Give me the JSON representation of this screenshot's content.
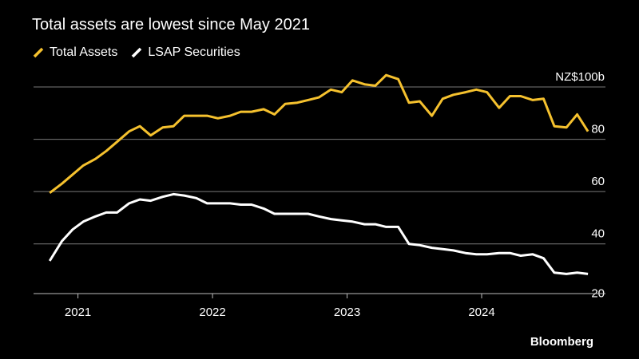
{
  "title": "Total assets are lowest since May 2021",
  "legend": [
    {
      "label": "Total Assets",
      "color": "#f5c12e"
    },
    {
      "label": "LSAP Securities",
      "color": "#ffffff"
    }
  ],
  "source": "Bloomberg",
  "chart_data": {
    "type": "line",
    "title": "Total assets are lowest since May 2021",
    "xlabel": "",
    "ylabel": "NZ$100b",
    "y_unit_label": "NZ$100b",
    "ylim": [
      20,
      100
    ],
    "yticks": [
      {
        "value": 100,
        "label": "NZ$100b"
      },
      {
        "value": 80,
        "label": "80"
      },
      {
        "value": 60,
        "label": "60"
      },
      {
        "value": 40,
        "label": "40"
      },
      {
        "value": 20,
        "label": "20"
      }
    ],
    "xlim": [
      2020.67,
      2024.92
    ],
    "xticks": [
      {
        "value": 2021.0,
        "label": "2021"
      },
      {
        "value": 2022.0,
        "label": "2022"
      },
      {
        "value": 2023.0,
        "label": "2023"
      },
      {
        "value": 2024.0,
        "label": "2024"
      }
    ],
    "grid": "horizontal",
    "legend_position": "top-left",
    "series": [
      {
        "name": "Total Assets",
        "color": "#f5c12e",
        "points": [
          [
            2020.79,
            59.5
          ],
          [
            2020.88,
            63
          ],
          [
            2020.96,
            66.5
          ],
          [
            2021.04,
            70
          ],
          [
            2021.13,
            72.5
          ],
          [
            2021.21,
            75.5
          ],
          [
            2021.29,
            79
          ],
          [
            2021.38,
            83
          ],
          [
            2021.46,
            85
          ],
          [
            2021.54,
            81.5
          ],
          [
            2021.63,
            84.5
          ],
          [
            2021.71,
            85
          ],
          [
            2021.79,
            89
          ],
          [
            2021.88,
            89
          ],
          [
            2021.96,
            89
          ],
          [
            2022.04,
            88
          ],
          [
            2022.13,
            89
          ],
          [
            2022.21,
            90.5
          ],
          [
            2022.29,
            90.5
          ],
          [
            2022.38,
            91.5
          ],
          [
            2022.46,
            89.5
          ],
          [
            2022.54,
            93.5
          ],
          [
            2022.63,
            94
          ],
          [
            2022.71,
            95
          ],
          [
            2022.79,
            96
          ],
          [
            2022.88,
            99
          ],
          [
            2022.96,
            98
          ],
          [
            2023.04,
            102.5
          ],
          [
            2023.13,
            101
          ],
          [
            2023.21,
            100.5
          ],
          [
            2023.29,
            104.5
          ],
          [
            2023.38,
            103
          ],
          [
            2023.46,
            94
          ],
          [
            2023.54,
            94.5
          ],
          [
            2023.63,
            89
          ],
          [
            2023.71,
            95.5
          ],
          [
            2023.79,
            97
          ],
          [
            2023.88,
            98
          ],
          [
            2023.96,
            99
          ],
          [
            2024.04,
            98
          ],
          [
            2024.13,
            92
          ],
          [
            2024.21,
            96.5
          ],
          [
            2024.29,
            96.5
          ],
          [
            2024.38,
            95
          ],
          [
            2024.46,
            95.5
          ],
          [
            2024.54,
            85
          ],
          [
            2024.63,
            84.5
          ],
          [
            2024.71,
            89.5
          ],
          [
            2024.79,
            83
          ]
        ]
      },
      {
        "name": "LSAP Securities",
        "color": "#ffffff",
        "points": [
          [
            2020.79,
            33.5
          ],
          [
            2020.88,
            41
          ],
          [
            2020.96,
            45.5
          ],
          [
            2021.04,
            48.5
          ],
          [
            2021.13,
            50.5
          ],
          [
            2021.21,
            52
          ],
          [
            2021.29,
            52
          ],
          [
            2021.38,
            55.5
          ],
          [
            2021.46,
            57
          ],
          [
            2021.54,
            56.5
          ],
          [
            2021.63,
            58
          ],
          [
            2021.71,
            59
          ],
          [
            2021.79,
            58.5
          ],
          [
            2021.88,
            57.5
          ],
          [
            2021.96,
            55.5
          ],
          [
            2022.04,
            55.5
          ],
          [
            2022.13,
            55.5
          ],
          [
            2022.21,
            55
          ],
          [
            2022.29,
            55
          ],
          [
            2022.38,
            53.5
          ],
          [
            2022.46,
            51.5
          ],
          [
            2022.54,
            51.5
          ],
          [
            2022.63,
            51.5
          ],
          [
            2022.71,
            51.5
          ],
          [
            2022.79,
            50.5
          ],
          [
            2022.88,
            49.5
          ],
          [
            2022.96,
            49
          ],
          [
            2023.04,
            48.5
          ],
          [
            2023.13,
            47.5
          ],
          [
            2023.21,
            47.5
          ],
          [
            2023.29,
            46.5
          ],
          [
            2023.38,
            46.5
          ],
          [
            2023.46,
            40
          ],
          [
            2023.54,
            39.5
          ],
          [
            2023.63,
            38.5
          ],
          [
            2023.71,
            38
          ],
          [
            2023.79,
            37.5
          ],
          [
            2023.88,
            36.5
          ],
          [
            2023.96,
            36
          ],
          [
            2024.04,
            36
          ],
          [
            2024.13,
            36.5
          ],
          [
            2024.21,
            36.5
          ],
          [
            2024.29,
            35.5
          ],
          [
            2024.38,
            36
          ],
          [
            2024.46,
            34.5
          ],
          [
            2024.54,
            29
          ],
          [
            2024.63,
            28.5
          ],
          [
            2024.71,
            29
          ],
          [
            2024.79,
            28.5
          ]
        ]
      }
    ]
  }
}
